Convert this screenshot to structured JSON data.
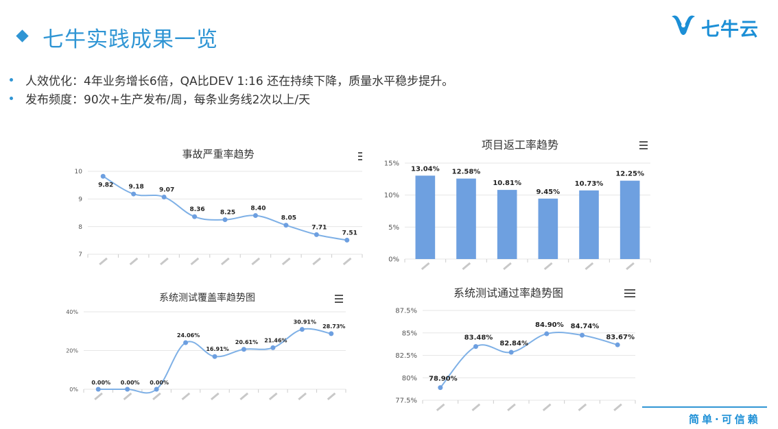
{
  "slide": {
    "title": "七牛实践成果一览",
    "logo_text": "七牛云",
    "bullets": [
      "人效优化：4年业务增长6倍，QA比DEV 1:16 还在持续下降，质量水平稳步提升。",
      "发布频度：90次+生产发布/周，每条业务线2次以上/天"
    ],
    "footer": "简单·可信赖"
  },
  "colors": {
    "accent": "#2f95d4",
    "line": "#7eb0e6",
    "point": "#6d9fe0",
    "bar": "#6ea0e0",
    "grid": "#e6e6e6"
  },
  "chart_data": [
    {
      "type": "line",
      "title": "事故严重率趋势",
      "values": [
        9.82,
        9.18,
        9.07,
        8.36,
        8.25,
        8.4,
        8.05,
        7.71,
        7.51
      ],
      "data_labels": [
        "9.82",
        "9.18",
        "9.07",
        "8.36",
        "8.25",
        "8.40",
        "8.05",
        "7.71",
        "7.51"
      ],
      "ylim": [
        7,
        10
      ],
      "yticks": [
        "7",
        "8",
        "9",
        "10"
      ],
      "grid": true,
      "legend": "none"
    },
    {
      "type": "bar",
      "title": "项目返工率趋势",
      "values": [
        13.04,
        12.58,
        10.81,
        9.45,
        10.73,
        12.25
      ],
      "data_labels": [
        "13.04%",
        "12.58%",
        "10.81%",
        "9.45%",
        "10.73%",
        "12.25%"
      ],
      "ylim": [
        0,
        15
      ],
      "yticks": [
        "0%",
        "5%",
        "10%",
        "15%"
      ],
      "grid": true,
      "legend": "none"
    },
    {
      "type": "line",
      "title": "系统测试覆盖率趋势图",
      "values": [
        0.0,
        0.0,
        0.0,
        24.06,
        16.91,
        20.61,
        21.46,
        30.91,
        28.73
      ],
      "data_labels": [
        "0.00%",
        "0.00%",
        "0.00%",
        "24.06%",
        "16.91%",
        "20.61%",
        "21.46%",
        "30.91%",
        "28.73%"
      ],
      "ylim": [
        0,
        40
      ],
      "yticks": [
        "0%",
        "20%",
        "40%"
      ],
      "grid": true,
      "legend": "none"
    },
    {
      "type": "line",
      "title": "系统测试通过率趋势图",
      "values": [
        78.9,
        83.48,
        82.84,
        84.9,
        84.74,
        83.67
      ],
      "data_labels": [
        "78.90%",
        "83.48%",
        "82.84%",
        "84.90%",
        "84.74%",
        "83.67%"
      ],
      "ylim": [
        77.5,
        87.5
      ],
      "yticks": [
        "77.5%",
        "80%",
        "82.5%",
        "85%",
        "87.5%"
      ],
      "grid": true,
      "legend": "none"
    }
  ]
}
